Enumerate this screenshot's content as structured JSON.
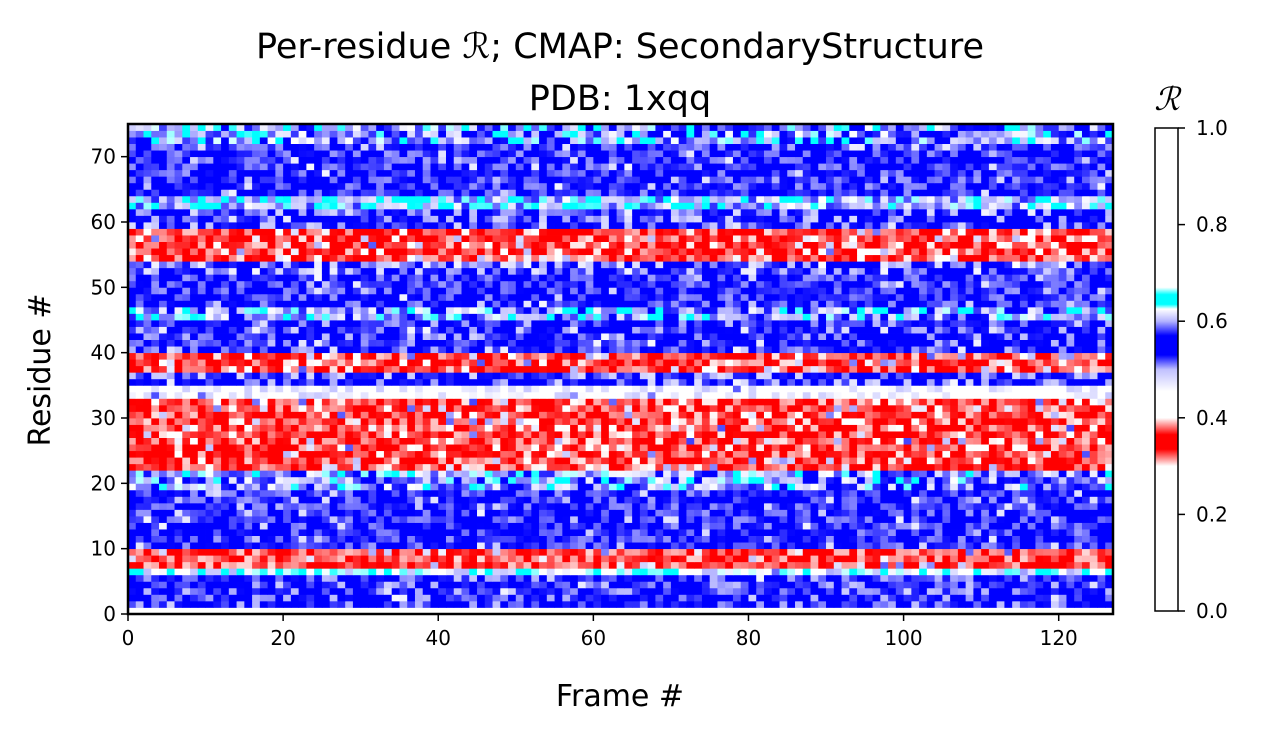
{
  "chart_data": {
    "type": "heatmap",
    "title_lines": [
      "Per-residue ℛ; CMAP: SecondaryStructure",
      "PDB: 1xqq"
    ],
    "xlabel": "Frame #",
    "ylabel": "Residue #",
    "xlim": [
      0,
      127
    ],
    "ylim": [
      0,
      75
    ],
    "x_ticks": [
      0,
      20,
      40,
      60,
      80,
      100,
      120
    ],
    "y_ticks": [
      0,
      10,
      20,
      30,
      40,
      50,
      60,
      70
    ],
    "n_frames": 127,
    "n_residues": 75,
    "colorbar": {
      "label": "ℛ",
      "range": [
        0.0,
        1.0
      ],
      "ticks": [
        "0.0",
        "0.2",
        "0.4",
        "0.6",
        "0.8",
        "1.0"
      ],
      "colors": {
        "background": "#ffffff",
        "helix_red": "#ff0000",
        "strand_blue": "#0000ff",
        "light_blue": "#b4b4ff",
        "cyan": "#00ffff"
      }
    },
    "residue_profile": {
      "description_bands": [
        {
          "residues": [
            1,
            5
          ],
          "mean": 0.56
        },
        {
          "residues": [
            6,
            6
          ],
          "mean": 0.64
        },
        {
          "residues": [
            7,
            9
          ],
          "mean": 0.35
        },
        {
          "residues": [
            10,
            18
          ],
          "mean": 0.55
        },
        {
          "residues": [
            19,
            21
          ],
          "mean": 0.6
        },
        {
          "residues": [
            22,
            32
          ],
          "mean": 0.36
        },
        {
          "residues": [
            33,
            34
          ],
          "mean": 0.45
        },
        {
          "residues": [
            35,
            36
          ],
          "mean": 0.57
        },
        {
          "residues": [
            37,
            39
          ],
          "mean": 0.36
        },
        {
          "residues": [
            40,
            44
          ],
          "mean": 0.56
        },
        {
          "residues": [
            45,
            46
          ],
          "mean": 0.6
        },
        {
          "residues": [
            47,
            51
          ],
          "mean": 0.55
        },
        {
          "residues": [
            52,
            53
          ],
          "mean": 0.58
        },
        {
          "residues": [
            54,
            58
          ],
          "mean": 0.36
        },
        {
          "residues": [
            59,
            61
          ],
          "mean": 0.57
        },
        {
          "residues": [
            62,
            63
          ],
          "mean": 0.62
        },
        {
          "residues": [
            64,
            71
          ],
          "mean": 0.55
        },
        {
          "residues": [
            72,
            74
          ],
          "mean": 0.6
        }
      ]
    }
  }
}
